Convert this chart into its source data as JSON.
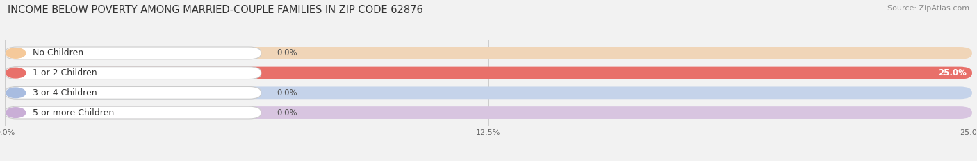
{
  "title": "INCOME BELOW POVERTY AMONG MARRIED-COUPLE FAMILIES IN ZIP CODE 62876",
  "source": "Source: ZipAtlas.com",
  "categories": [
    "No Children",
    "1 or 2 Children",
    "3 or 4 Children",
    "5 or more Children"
  ],
  "values": [
    0.0,
    25.0,
    0.0,
    0.0
  ],
  "bar_colors": [
    "#f5c99a",
    "#e8706a",
    "#a8bce0",
    "#c9aed6"
  ],
  "bar_bg_colors": [
    "#f0d5b8",
    "#e8aaaa",
    "#c5d3ea",
    "#d8c5e0"
  ],
  "xlim_max": 25.0,
  "xticks": [
    0.0,
    12.5,
    25.0
  ],
  "xtick_labels": [
    "0.0%",
    "12.5%",
    "25.0%"
  ],
  "background_color": "#f2f2f2",
  "title_fontsize": 10.5,
  "source_fontsize": 8,
  "label_fontsize": 9,
  "value_fontsize": 8.5,
  "bar_height": 0.62
}
